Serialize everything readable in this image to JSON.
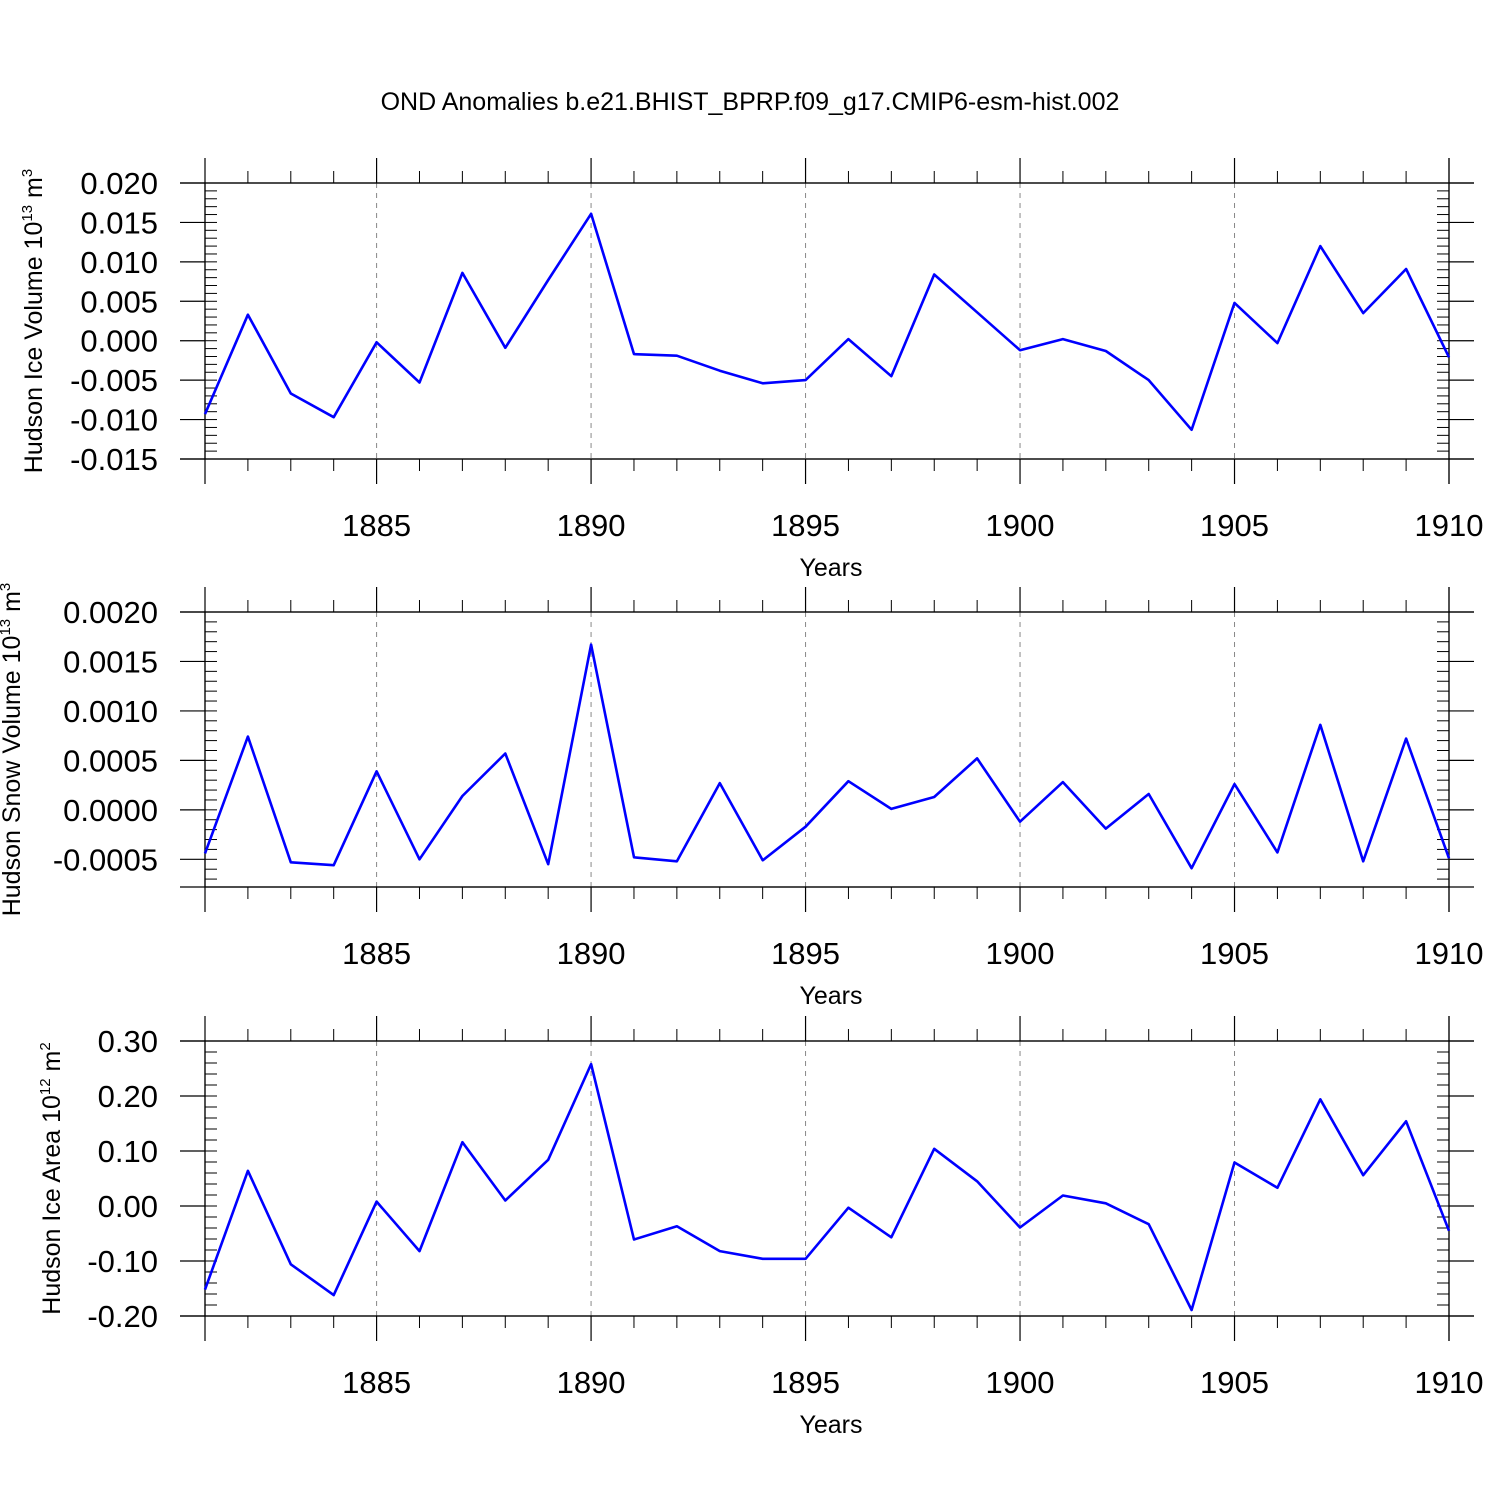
{
  "title": "OND Anomalies b.e21.BHIST_BPRP.f09_g17.CMIP6-esm-hist.002",
  "colors": {
    "line": "#0000ff",
    "axis": "#000000",
    "grid": "#888888"
  },
  "chart_data": [
    {
      "type": "line",
      "ylabel": "Hudson Ice Volume 10",
      "ylabel_exp": "13",
      "ylabel_unit": "m",
      "ylabel_unit_exp": "3",
      "xlabel": "Years",
      "xlim": [
        1881,
        1910
      ],
      "ylim": [
        -0.015,
        0.02
      ],
      "yticks": [
        -0.015,
        -0.01,
        -0.005,
        0.0,
        0.005,
        0.01,
        0.015,
        0.02
      ],
      "ytick_labels": [
        "-0.015",
        "-0.010",
        "-0.005",
        "0.000",
        "0.005",
        "0.010",
        "0.015",
        "0.020"
      ],
      "xticks": [
        1885,
        1890,
        1895,
        1900,
        1905,
        1910
      ],
      "xtick_labels": [
        "1885",
        "1890",
        "1895",
        "1900",
        "1905",
        "1910"
      ],
      "series": [
        {
          "name": "Hudson Ice Volume",
          "x": [
            1881,
            1882,
            1883,
            1884,
            1885,
            1886,
            1887,
            1888,
            1889,
            1890,
            1891,
            1892,
            1893,
            1894,
            1895,
            1896,
            1897,
            1898,
            1899,
            1900,
            1901,
            1902,
            1903,
            1904,
            1905,
            1906,
            1907,
            1908,
            1909,
            1910
          ],
          "values": [
            -0.0093,
            0.0033,
            -0.0067,
            -0.0097,
            -0.0002,
            -0.0053,
            0.0086,
            -0.0009,
            0.0077,
            0.0161,
            -0.0017,
            -0.0019,
            -0.0038,
            -0.0054,
            -0.005,
            0.0002,
            -0.0045,
            0.0084,
            0.0036,
            -0.0012,
            0.0002,
            -0.0013,
            -0.005,
            -0.0113,
            0.0048,
            -0.0003,
            0.012,
            0.0035,
            0.0091,
            -0.0021
          ]
        }
      ]
    },
    {
      "type": "line",
      "ylabel": "Hudson Snow Volume 10",
      "ylabel_exp": "13",
      "ylabel_unit": "m",
      "ylabel_unit_exp": "3",
      "xlabel": "Years",
      "xlim": [
        1881,
        1910
      ],
      "ylim": [
        -0.00078,
        0.002
      ],
      "yticks": [
        -0.0005,
        0.0,
        0.0005,
        0.001,
        0.0015,
        0.002
      ],
      "ytick_labels": [
        "-0.0005",
        "0.0000",
        "0.0005",
        "0.0010",
        "0.0015",
        "0.0020"
      ],
      "xticks": [
        1885,
        1890,
        1895,
        1900,
        1905,
        1910
      ],
      "xtick_labels": [
        "1885",
        "1890",
        "1895",
        "1900",
        "1905",
        "1910"
      ],
      "series": [
        {
          "name": "Hudson Snow Volume",
          "x": [
            1881,
            1882,
            1883,
            1884,
            1885,
            1886,
            1887,
            1888,
            1889,
            1890,
            1891,
            1892,
            1893,
            1894,
            1895,
            1896,
            1897,
            1898,
            1899,
            1900,
            1901,
            1902,
            1903,
            1904,
            1905,
            1906,
            1907,
            1908,
            1909,
            1910
          ],
          "values": [
            -0.00044,
            0.00074,
            -0.00053,
            -0.00056,
            0.00039,
            -0.0005,
            0.00014,
            0.00057,
            -0.00055,
            0.00167,
            -0.00048,
            -0.00052,
            0.00027,
            -0.00051,
            -0.00017,
            0.00029,
            1e-05,
            0.00013,
            0.00052,
            -0.00012,
            0.00028,
            -0.00019,
            0.00016,
            -0.00059,
            0.00026,
            -0.00043,
            0.00086,
            -0.00052,
            0.00072,
            -0.00049
          ]
        }
      ]
    },
    {
      "type": "line",
      "ylabel": "Hudson Ice Area 10",
      "ylabel_exp": "12",
      "ylabel_unit": "m",
      "ylabel_unit_exp": "2",
      "xlabel": "Years",
      "xlim": [
        1881,
        1910
      ],
      "ylim": [
        -0.2,
        0.3
      ],
      "yticks": [
        -0.2,
        -0.1,
        0.0,
        0.1,
        0.2,
        0.3
      ],
      "ytick_labels": [
        "-0.20",
        "-0.10",
        "0.00",
        "0.10",
        "0.20",
        "0.30"
      ],
      "xticks": [
        1885,
        1890,
        1895,
        1900,
        1905,
        1910
      ],
      "xtick_labels": [
        "1885",
        "1890",
        "1895",
        "1900",
        "1905",
        "1910"
      ],
      "series": [
        {
          "name": "Hudson Ice Area",
          "x": [
            1881,
            1882,
            1883,
            1884,
            1885,
            1886,
            1887,
            1888,
            1889,
            1890,
            1891,
            1892,
            1893,
            1894,
            1895,
            1896,
            1897,
            1898,
            1899,
            1900,
            1901,
            1902,
            1903,
            1904,
            1905,
            1906,
            1907,
            1908,
            1909,
            1910
          ],
          "values": [
            -0.152,
            0.064,
            -0.106,
            -0.162,
            0.008,
            -0.082,
            0.116,
            0.01,
            0.084,
            0.258,
            -0.061,
            -0.037,
            -0.082,
            -0.096,
            -0.096,
            -0.003,
            -0.057,
            0.104,
            0.045,
            -0.039,
            0.019,
            0.005,
            -0.033,
            -0.189,
            0.079,
            0.033,
            0.194,
            0.056,
            0.154,
            -0.045
          ]
        }
      ]
    }
  ]
}
